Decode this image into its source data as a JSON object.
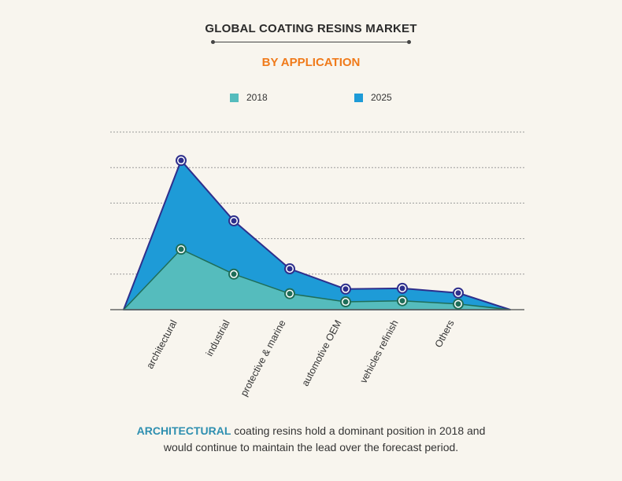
{
  "header": {
    "title": "GLOBAL COATING RESINS MARKET",
    "subtitle": "BY APPLICATION"
  },
  "caption": {
    "highlight": "ARCHITECTURAL",
    "line1_rest": " coating resins hold a dominant position in 2018 and",
    "line2": "would continue to maintain the lead over the forecast period."
  },
  "colors": {
    "series_2018": "#55bcbd",
    "series_2025": "#1e9bd7",
    "marker_2018": "#1f6e59",
    "marker_2025": "#2e2f8c",
    "title_accent": "#f07a1a",
    "highlight": "#2e8fb0"
  },
  "chart_data": {
    "type": "area",
    "categories": [
      "architectural",
      "industrial",
      "protective & marine",
      "automotive OEM",
      "vehicles refinish",
      "Others"
    ],
    "series": [
      {
        "name": "2018",
        "values": [
          1.7,
          1.0,
          0.45,
          0.22,
          0.25,
          0.16
        ]
      },
      {
        "name": "2025",
        "values": [
          4.2,
          2.5,
          1.15,
          0.58,
          0.6,
          0.47
        ]
      }
    ],
    "ylim": [
      0,
      5
    ],
    "grid": true,
    "legend_position": "top-center"
  }
}
